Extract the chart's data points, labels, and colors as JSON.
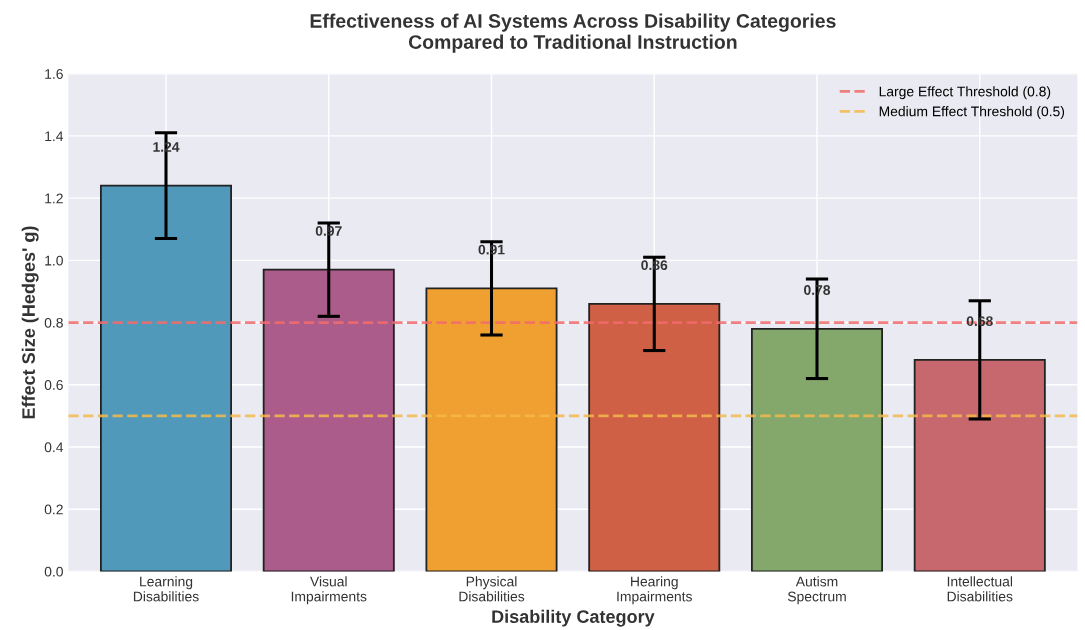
{
  "chart_data": {
    "type": "bar",
    "title": "Effectiveness of AI Systems Across Disability Categories\nCompared to Traditional Instruction",
    "xlabel": "Disability Category",
    "ylabel": "Effect Size (Hedges' g)",
    "categories": [
      "Learning\nDisabilities",
      "Visual\nImpairments",
      "Physical\nDisabilities",
      "Hearing\nImpairments",
      "Autism\nSpectrum",
      "Intellectual\nDisabilities"
    ],
    "values": [
      1.24,
      0.97,
      0.91,
      0.86,
      0.78,
      0.68
    ],
    "errors": [
      0.17,
      0.15,
      0.15,
      0.15,
      0.16,
      0.19
    ],
    "colors": [
      "#5199ba",
      "#ab5c8a",
      "#f0a030",
      "#cf5f45",
      "#84a86c",
      "#c6686e"
    ],
    "data_labels": true,
    "ylim": [
      0.0,
      1.6
    ],
    "yticks": [
      {
        "value": 0,
        "label": "0.0"
      },
      0.2,
      0.4,
      0.6,
      0.8,
      {
        "value": 1,
        "label": "1.0"
      },
      1.2,
      1.4,
      1.6
    ],
    "ref_lines": [
      {
        "axis": "y",
        "value": 0.8,
        "label": "Large Effect Threshold (0.8)",
        "color": "#f26b6b",
        "line_style": "dashed"
      },
      {
        "axis": "y",
        "value": 0.5,
        "label": "Medium Effect Threshold (0.5)",
        "color": "#f5b84a",
        "line_style": "dashed"
      }
    ],
    "grid": true,
    "legend": "top right"
  }
}
